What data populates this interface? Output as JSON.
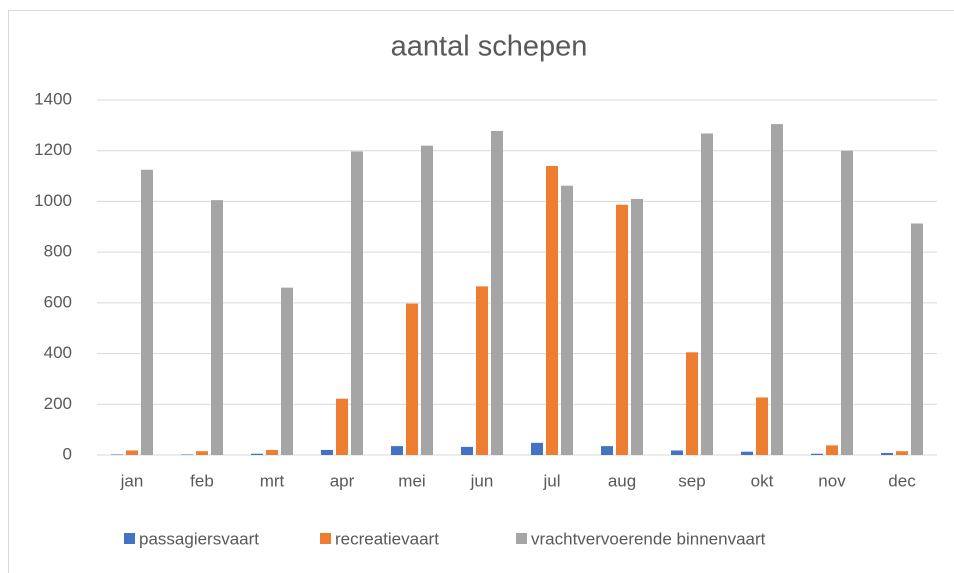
{
  "chart_data": {
    "type": "bar",
    "title": "aantal schepen",
    "categories": [
      "jan",
      "feb",
      "mrt",
      "apr",
      "mei",
      "jun",
      "jul",
      "aug",
      "sep",
      "okt",
      "nov",
      "dec"
    ],
    "series": [
      {
        "name": "passagiersvaart",
        "color": "#4472c4",
        "values": [
          2,
          2,
          5,
          20,
          35,
          32,
          48,
          35,
          18,
          13,
          5,
          8
        ]
      },
      {
        "name": "recreatievaart",
        "color": "#ed7d31",
        "values": [
          18,
          15,
          20,
          222,
          597,
          665,
          1140,
          987,
          405,
          227,
          38,
          15
        ]
      },
      {
        "name": "vrachtvervoerende binnenvaart",
        "color": "#a5a5a5",
        "values": [
          1125,
          1005,
          660,
          1197,
          1220,
          1278,
          1062,
          1010,
          1268,
          1305,
          1200,
          913
        ]
      }
    ],
    "ylim": [
      0,
      1400
    ],
    "yticks": [
      0,
      200,
      400,
      600,
      800,
      1000,
      1200,
      1400
    ],
    "grid": true,
    "legend": "bottom"
  }
}
